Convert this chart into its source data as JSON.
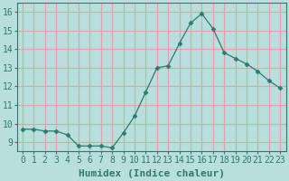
{
  "x": [
    0,
    1,
    2,
    3,
    4,
    5,
    6,
    7,
    8,
    9,
    10,
    11,
    12,
    13,
    14,
    15,
    16,
    17,
    18,
    19,
    20,
    21,
    22,
    23
  ],
  "y": [
    9.7,
    9.7,
    9.6,
    9.6,
    9.4,
    8.8,
    8.8,
    8.8,
    8.7,
    9.5,
    10.4,
    11.7,
    13.0,
    13.1,
    14.3,
    15.4,
    15.9,
    15.1,
    13.8,
    13.5,
    13.2,
    12.8,
    12.3,
    11.9
  ],
  "line_color": "#2d7a70",
  "marker": "D",
  "marker_size": 2.5,
  "bg_color": "#b8dede",
  "grid_color": "#e8a0a0",
  "xlabel": "Humidex (Indice chaleur)",
  "xlabel_fontsize": 8,
  "tick_fontsize": 7,
  "xlim": [
    -0.5,
    23.5
  ],
  "ylim": [
    8.5,
    16.5
  ],
  "yticks": [
    9,
    10,
    11,
    12,
    13,
    14,
    15,
    16
  ],
  "xticks": [
    0,
    1,
    2,
    3,
    4,
    5,
    6,
    7,
    8,
    9,
    10,
    11,
    12,
    13,
    14,
    15,
    16,
    17,
    18,
    19,
    20,
    21,
    22,
    23
  ]
}
